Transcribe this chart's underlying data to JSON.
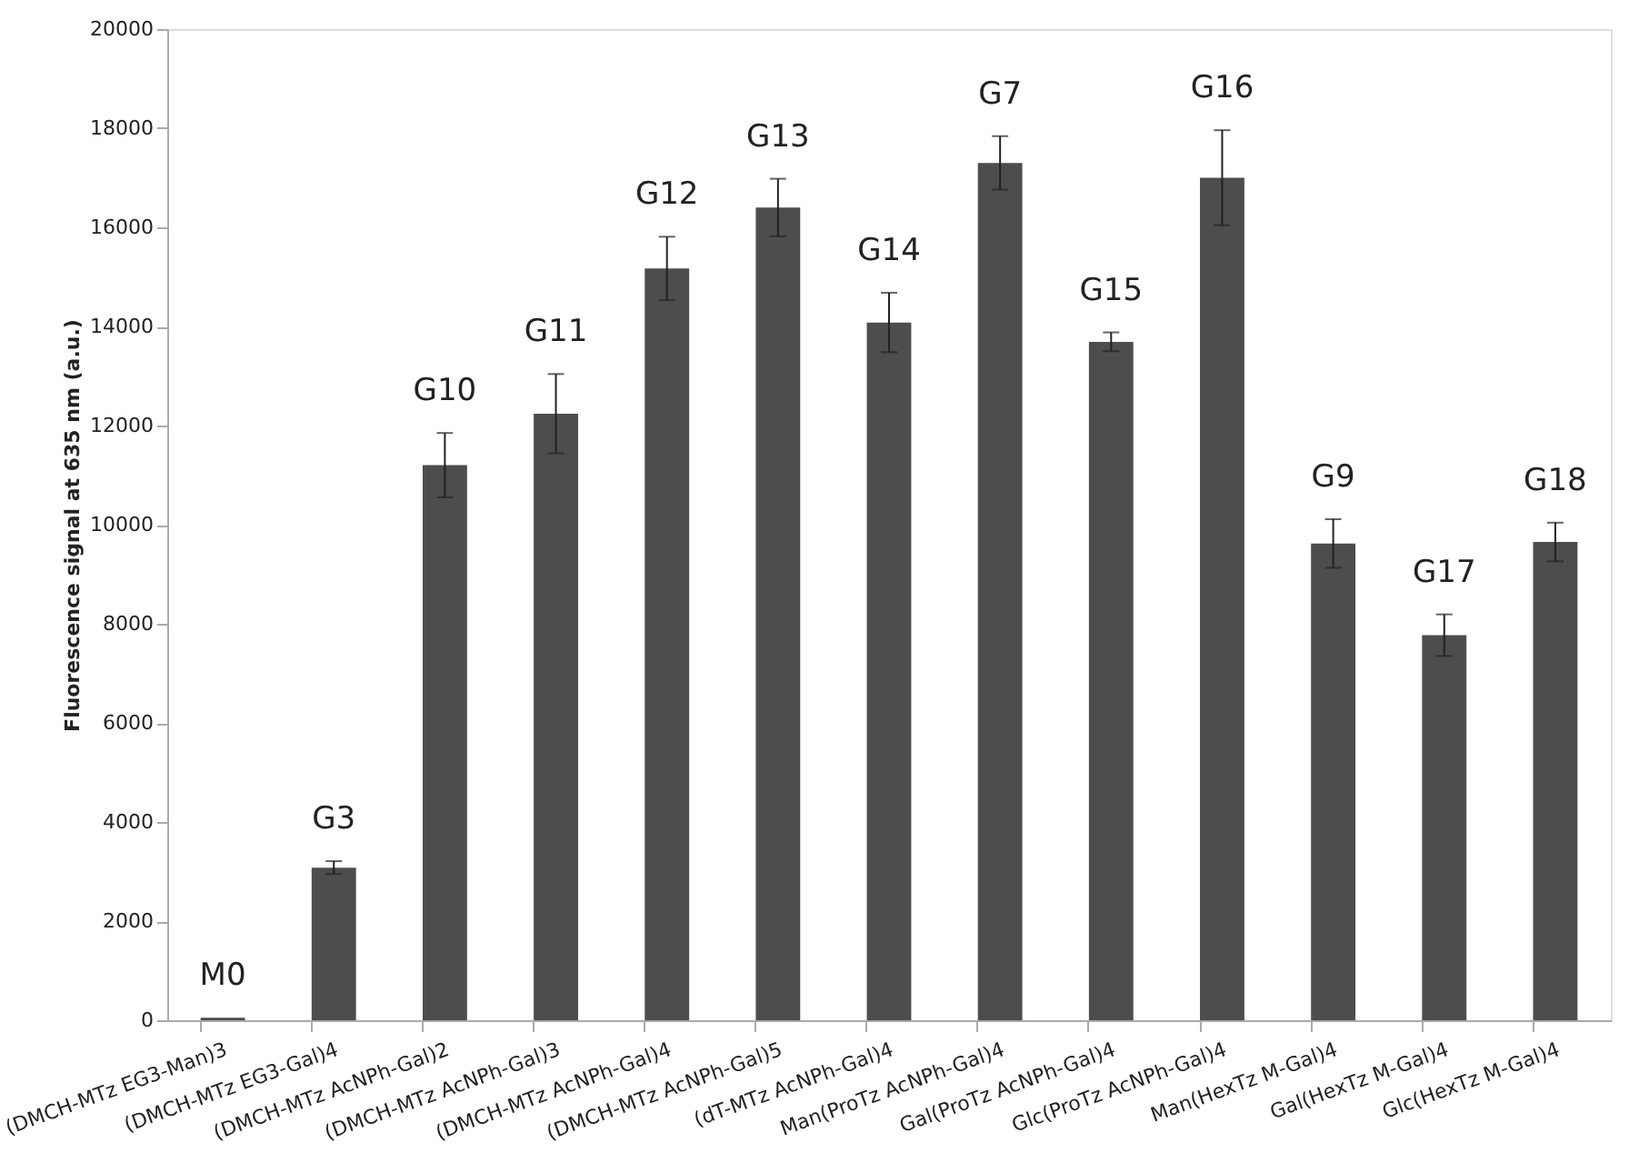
{
  "chart_data": {
    "type": "bar",
    "ylabel": "Fluorescence signal at 635 nm (a.u.)",
    "categories": [
      "(DMCH-MTz EG3-Man)3",
      "(DMCH-MTz EG3-Gal)4",
      "(DMCH-MTz AcNPh-Gal)2",
      "(DMCH-MTz AcNPh-Gal)3",
      "(DMCH-MTz AcNPh-Gal)4",
      "(DMCH-MTz AcNPh-Gal)5",
      "(dT-MTz AcNPh-Gal)4",
      "Man(ProTz AcNPh-Gal)4",
      "Gal(ProTz AcNPh-Gal)4",
      "Glc(ProTz AcNPh-Gal)4",
      "Man(HexTz M-Gal)4",
      "Gal(HexTz M-Gal)4",
      "Glc(HexTz M-Gal)4"
    ],
    "values": [
      50,
      3080,
      11200,
      12240,
      15170,
      16400,
      14080,
      17300,
      13690,
      17000,
      9620,
      7770,
      9650
    ],
    "errors": [
      null,
      130,
      650,
      800,
      640,
      580,
      600,
      540,
      190,
      960,
      490,
      420,
      390
    ],
    "color": "#4d4d4d",
    "ylim": [
      0,
      20000
    ],
    "yticks": [
      0,
      2000,
      4000,
      6000,
      8000,
      10000,
      12000,
      14000,
      16000,
      18000,
      20000
    ],
    "grid": false,
    "annotations": [
      "M0",
      "G3",
      "G10",
      "G11",
      "G12",
      "G13",
      "G14",
      "G7",
      "G15",
      "G16",
      "G9",
      "G17",
      "G18"
    ]
  }
}
